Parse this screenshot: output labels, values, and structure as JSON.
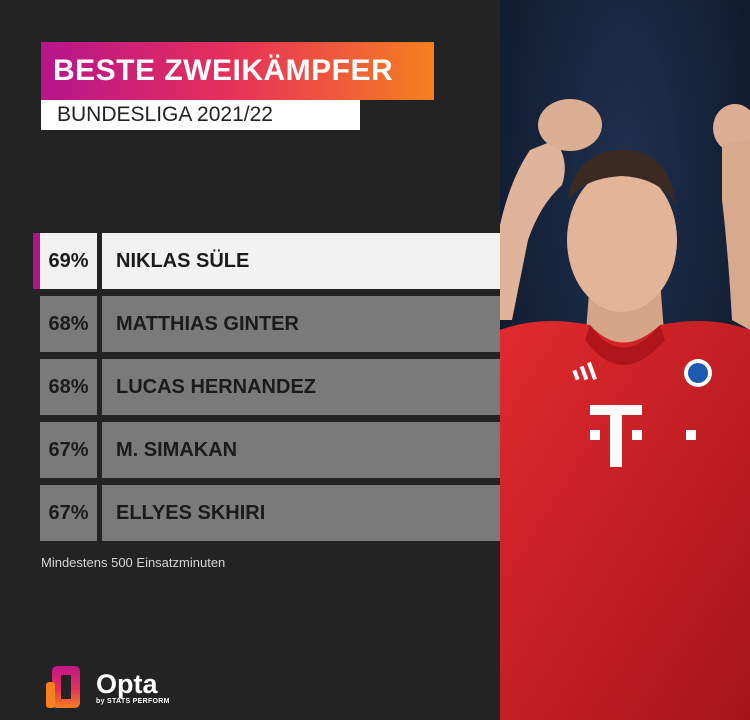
{
  "header": {
    "title": "BESTE ZWEIKÄMPFER",
    "subtitle": "BUNDESLIGA 2021/22"
  },
  "ranking": [
    {
      "pct": "69%",
      "name": "NIKLAS SÜLE",
      "highlight": true
    },
    {
      "pct": "68%",
      "name": "MATTHIAS GINTER",
      "highlight": false
    },
    {
      "pct": "68%",
      "name": "LUCAS HERNANDEZ",
      "highlight": false
    },
    {
      "pct": "67%",
      "name": "M. SIMAKAN",
      "highlight": false
    },
    {
      "pct": "67%",
      "name": "ELLYES SKHIRI",
      "highlight": false
    }
  ],
  "footnote": "Mindestens 500 Einsatzminuten",
  "brand": {
    "name": "Opta",
    "byline": "by STATS PERFORM",
    "gradient": [
      "#b7148c",
      "#e6305a",
      "#f6801f"
    ],
    "highlight_color": "#b0148a"
  },
  "photo": {
    "shirt_sponsor": "T",
    "shirt_color": "#d41f26"
  }
}
